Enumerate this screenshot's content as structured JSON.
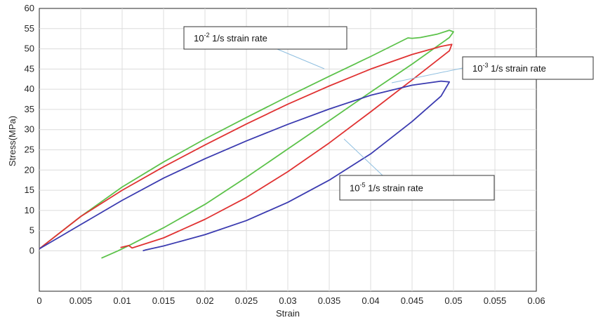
{
  "chart_data": {
    "type": "line",
    "xlabel": "Strain",
    "ylabel": "Stress(MPa)",
    "xlim": [
      0,
      0.06
    ],
    "ylim": [
      -10,
      60
    ],
    "x_ticks": [
      "0",
      "0.005",
      "0.01",
      "0.015",
      "0.02",
      "0.025",
      "0.03",
      "0.035",
      "0.04",
      "0.045",
      "0.05",
      "0.055",
      "0.06"
    ],
    "y_ticks": [
      "0",
      "5",
      "10",
      "15",
      "20",
      "25",
      "30",
      "35",
      "40",
      "45",
      "50",
      "55",
      "60"
    ],
    "grid": true,
    "series": [
      {
        "id": "rate-1e-2",
        "color": "#5cc24a",
        "x": [
          0,
          0.005,
          0.01,
          0.015,
          0.02,
          0.025,
          0.03,
          0.035,
          0.04,
          0.0445,
          0.045,
          0.046,
          0.048,
          0.0495,
          0.05,
          0.0495,
          0.045,
          0.04,
          0.035,
          0.03,
          0.025,
          0.02,
          0.015,
          0.011,
          0.0095,
          0.0075
        ],
        "y": [
          0.5,
          8.5,
          15.8,
          22,
          27.7,
          33,
          38.2,
          43.2,
          48.1,
          52.7,
          52.6,
          52.8,
          53.6,
          54.6,
          54.2,
          52.8,
          46.2,
          39.3,
          32.2,
          25.2,
          18.2,
          11.5,
          5.7,
          1.5,
          0,
          -1.8
        ]
      },
      {
        "id": "rate-1e-3",
        "color": "#e03232",
        "x": [
          0,
          0.005,
          0.01,
          0.015,
          0.02,
          0.025,
          0.03,
          0.035,
          0.04,
          0.045,
          0.0485,
          0.0498,
          0.0495,
          0.045,
          0.04,
          0.035,
          0.03,
          0.025,
          0.02,
          0.015,
          0.0112,
          0.0108,
          0.0098
        ],
        "y": [
          0.5,
          8.5,
          15,
          20.8,
          26.2,
          31.4,
          36.3,
          40.8,
          45,
          48.6,
          50.6,
          51.1,
          49.5,
          42.3,
          34.4,
          26.7,
          19.6,
          13.2,
          7.8,
          3.2,
          0.7,
          1.3,
          0.8
        ]
      },
      {
        "id": "rate-1e-5",
        "color": "#3b3bb0",
        "x": [
          0,
          0.005,
          0.01,
          0.015,
          0.02,
          0.025,
          0.03,
          0.035,
          0.04,
          0.045,
          0.0485,
          0.0495,
          0.0485,
          0.045,
          0.04,
          0.035,
          0.03,
          0.025,
          0.02,
          0.015,
          0.0128,
          0.0125
        ],
        "y": [
          0.5,
          6.5,
          12.5,
          18,
          22.8,
          27.2,
          31.3,
          35.1,
          38.5,
          41,
          42,
          41.8,
          38.3,
          32,
          24,
          17.5,
          12,
          7.5,
          4,
          1.2,
          0.2,
          0
        ]
      }
    ],
    "annotations": [
      {
        "id": "note-1e-2",
        "base": "10",
        "exp": "-2",
        "text": " 1/s  strain rate",
        "series": "rate-1e-2"
      },
      {
        "id": "note-1e-3",
        "base": "10",
        "exp": "-3",
        "text": " 1/s strain rate",
        "series": "rate-1e-3"
      },
      {
        "id": "note-1e-5",
        "base": "10",
        "exp": "-5",
        "text": " 1/s strain rate",
        "series": "rate-1e-5"
      }
    ]
  }
}
